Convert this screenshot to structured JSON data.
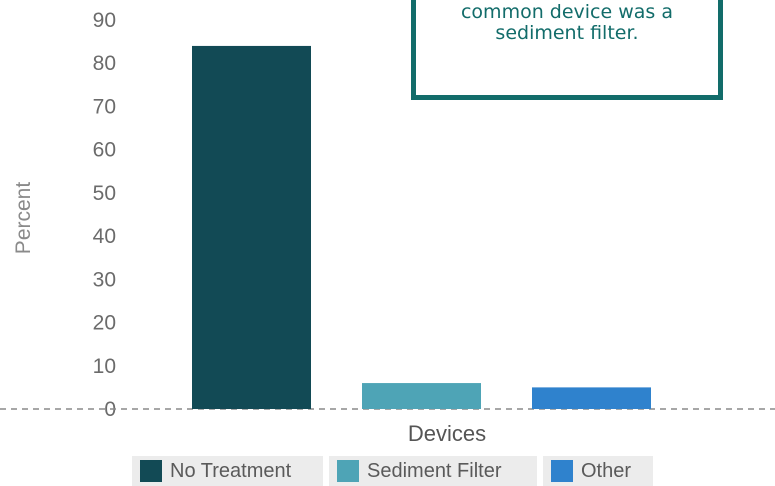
{
  "chart_data": {
    "type": "bar",
    "categories": [
      "No Treatment",
      "Sediment Filter",
      "Other"
    ],
    "values": [
      84,
      6,
      5
    ],
    "colors": [
      "#124a55",
      "#4ea4b6",
      "#2f82cd"
    ],
    "xlabel": "Devices",
    "ylabel": "Percent",
    "ylim": [
      0,
      90
    ],
    "yticks": [
      0,
      10,
      20,
      30,
      40,
      50,
      60,
      70,
      80,
      90
    ],
    "grid": false,
    "baseline": "dashed",
    "legend_position": "bottom"
  },
  "annotation": {
    "line1": "common device was a",
    "line2": "sediment filter.",
    "border_color": "#126c6a"
  }
}
